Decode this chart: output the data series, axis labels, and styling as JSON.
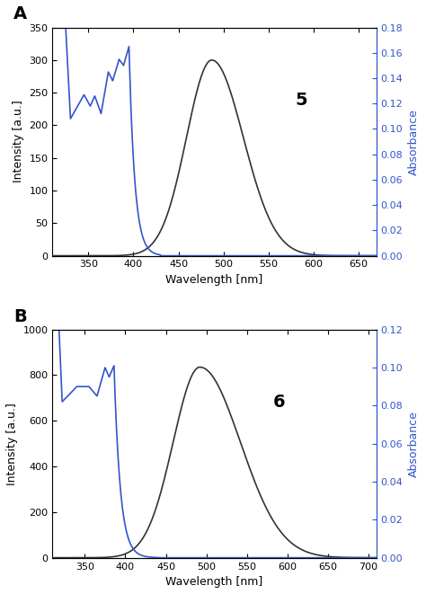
{
  "panel_A": {
    "label": "A",
    "compound": "5",
    "xlim": [
      310,
      670
    ],
    "xticks": [
      350,
      400,
      450,
      500,
      550,
      600,
      650
    ],
    "ylim_left": [
      0,
      350
    ],
    "yticks_left": [
      0,
      50,
      100,
      150,
      200,
      250,
      300,
      350
    ],
    "ylim_right": [
      0,
      0.18
    ],
    "yticks_right": [
      0.0,
      0.02,
      0.04,
      0.06,
      0.08,
      0.1,
      0.12,
      0.14,
      0.16,
      0.18
    ],
    "ylabel_left": "Intensity [a.u.]",
    "ylabel_right": "Absorbance",
    "xlabel": "Wavelength [nm]",
    "fluor_peak": 487,
    "fluor_max": 300,
    "fluor_sigma_l": 28,
    "fluor_sigma_r": 35
  },
  "panel_B": {
    "label": "B",
    "compound": "6",
    "xlim": [
      310,
      710
    ],
    "xticks": [
      350,
      400,
      450,
      500,
      550,
      600,
      650,
      700
    ],
    "ylim_left": [
      0,
      1000
    ],
    "yticks_left": [
      0,
      200,
      400,
      600,
      800,
      1000
    ],
    "ylim_right": [
      0,
      0.12
    ],
    "yticks_right": [
      0.0,
      0.02,
      0.04,
      0.06,
      0.08,
      0.1,
      0.12
    ],
    "ylabel_left": "Intensity [a.u.]",
    "ylabel_right": "Absorbance",
    "xlabel": "Wavelength [nm]",
    "fluor_peak": 492,
    "fluor_max": 835,
    "fluor_sigma_l": 33,
    "fluor_sigma_r": 50
  },
  "background_color": "#ffffff",
  "blue_color": "#3355cc",
  "black_color": "#333333"
}
